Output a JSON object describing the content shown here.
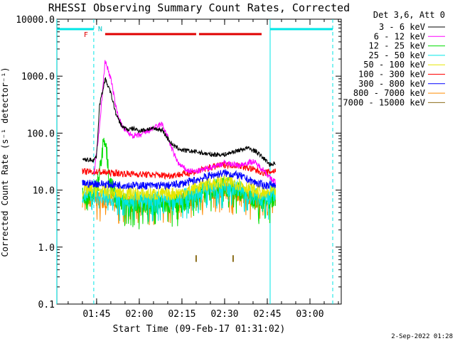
{
  "chart_data": {
    "type": "line",
    "title": "RHESSI Observing Summary Count Rates, Corrected",
    "xlabel": "Start Time (09-Feb-17 01:31:02)",
    "ylabel": "Corrected Count Rate (s⁻¹ detector⁻¹)",
    "footer": "2-Sep-2022 01:28",
    "y_scale": "log",
    "ylim": [
      0.1,
      10000
    ],
    "xlim": [
      "01:31:02",
      "03:11:00"
    ],
    "x_ticks": [
      "01:45",
      "02:00",
      "02:15",
      "02:30",
      "02:45",
      "03:00"
    ],
    "y_ticks": [
      "0.1",
      "1.0",
      "10.0",
      "100.0",
      "1000.0",
      "10000.0"
    ],
    "legend": {
      "position": "top-right",
      "header": "Det 3,6, Att 0",
      "entries": [
        {
          "label": "3 - 6 keV",
          "color": "#000000"
        },
        {
          "label": "6 - 12 keV",
          "color": "#ff00ff"
        },
        {
          "label": "12 - 25 keV",
          "color": "#00dd00"
        },
        {
          "label": "25 - 50 keV",
          "color": "#00e6e6"
        },
        {
          "label": "50 - 100 keV",
          "color": "#e6e600"
        },
        {
          "label": "100 - 300 keV",
          "color": "#ff0000"
        },
        {
          "label": "300 - 800 keV",
          "color": "#0000ff"
        },
        {
          "label": "800 - 7000 keV",
          "color": "#ff8c00"
        },
        {
          "label": "7000 - 15000 keV",
          "color": "#8b6d1a"
        }
      ]
    },
    "flags": {
      "F_label": "F",
      "N_label": "N",
      "flare_bar": [
        [
          "01:48",
          "02:20"
        ],
        [
          "02:21",
          "02:43"
        ]
      ],
      "night_bar": [
        [
          "01:31",
          "01:44"
        ],
        [
          "02:46",
          "03:08"
        ]
      ],
      "cyan_solid_lines": [
        "01:31",
        "02:46"
      ],
      "cyan_dashed_lines": [
        "01:44",
        "03:08"
      ]
    },
    "series": [
      {
        "name": "3 - 6 keV",
        "color": "#000000",
        "x": [
          "01:40",
          "01:44",
          "01:45",
          "01:46",
          "01:48",
          "01:50",
          "01:52",
          "01:54",
          "01:56",
          "01:58",
          "02:00",
          "02:04",
          "02:08",
          "02:10",
          "02:12",
          "02:15",
          "02:20",
          "02:25",
          "02:30",
          "02:35",
          "02:38",
          "02:41",
          "02:44",
          "02:46",
          "02:48"
        ],
        "y": [
          34,
          34,
          40,
          300,
          900,
          500,
          200,
          130,
          115,
          120,
          110,
          120,
          115,
          80,
          60,
          50,
          47,
          42,
          42,
          50,
          55,
          48,
          35,
          28,
          30
        ]
      },
      {
        "name": "6 - 12 keV",
        "color": "#ff00ff",
        "x": [
          "01:44",
          "01:46",
          "01:48",
          "01:50",
          "01:52",
          "01:54",
          "01:56",
          "01:58",
          "02:00",
          "02:04",
          "02:08",
          "02:10",
          "02:12",
          "02:14",
          "02:17",
          "02:20",
          "02:25",
          "02:30",
          "02:35",
          "02:40",
          "02:44",
          "02:46",
          "02:48"
        ],
        "y": [
          18,
          120,
          1900,
          900,
          250,
          130,
          100,
          90,
          90,
          115,
          145,
          85,
          45,
          28,
          22,
          21,
          25,
          30,
          27,
          32,
          22,
          16,
          14
        ]
      },
      {
        "name": "12 - 25 keV",
        "color": "#00dd00",
        "x": [
          "01:40",
          "01:44",
          "01:46",
          "01:47",
          "01:48",
          "01:49",
          "01:50",
          "01:52",
          "01:55",
          "02:00",
          "02:10",
          "02:15",
          "02:20",
          "02:25",
          "02:30",
          "02:35",
          "02:40",
          "02:44",
          "02:48"
        ],
        "y": [
          8,
          8,
          18,
          55,
          65,
          30,
          12,
          7,
          6,
          5.5,
          5.5,
          6,
          8,
          10,
          12,
          10,
          7,
          6,
          8
        ]
      },
      {
        "name": "25 - 50 keV",
        "color": "#00e6e6",
        "x": [
          "01:40",
          "01:45",
          "01:50",
          "02:00",
          "02:10",
          "02:15",
          "02:20",
          "02:25",
          "02:30",
          "02:35",
          "02:40",
          "02:44",
          "02:48"
        ],
        "y": [
          8,
          8,
          7.5,
          7,
          7,
          7.5,
          9,
          11,
          12,
          11,
          8,
          7,
          9
        ]
      },
      {
        "name": "50 - 100 keV",
        "color": "#e6e600",
        "x": [
          "01:40",
          "01:45",
          "01:50",
          "02:00",
          "02:10",
          "02:15",
          "02:20",
          "02:25",
          "02:30",
          "02:35",
          "02:40",
          "02:44",
          "02:48"
        ],
        "y": [
          10,
          10,
          9,
          8.5,
          8.5,
          9,
          11,
          13,
          14,
          13,
          10,
          8.5,
          10
        ]
      },
      {
        "name": "100 - 300 keV",
        "color": "#ff0000",
        "x": [
          "01:40",
          "01:45",
          "01:50",
          "02:00",
          "02:10",
          "02:15",
          "02:20",
          "02:25",
          "02:30",
          "02:35",
          "02:40",
          "02:44",
          "02:48"
        ],
        "y": [
          21,
          21,
          20,
          19,
          18,
          19,
          21,
          25,
          28,
          27,
          23,
          20,
          22
        ]
      },
      {
        "name": "300 - 800 keV",
        "color": "#0000ff",
        "x": [
          "01:40",
          "01:45",
          "01:50",
          "02:00",
          "02:10",
          "02:15",
          "02:20",
          "02:25",
          "02:30",
          "02:35",
          "02:40",
          "02:44",
          "02:48"
        ],
        "y": [
          13,
          13,
          12.5,
          12,
          12,
          13,
          15,
          18,
          20,
          18,
          14,
          12,
          13
        ]
      },
      {
        "name": "800 - 7000 keV",
        "color": "#ff8c00",
        "x": [
          "01:40",
          "01:45",
          "01:50",
          "02:00",
          "02:10",
          "02:15",
          "02:20",
          "02:25",
          "02:30",
          "02:35",
          "02:40",
          "02:44",
          "02:48"
        ],
        "y": [
          7,
          7,
          6.5,
          6,
          6,
          6.5,
          8,
          9.5,
          10,
          9,
          7,
          6.5,
          7.5
        ]
      },
      {
        "name": "7000 - 15000 keV",
        "color": "#8b6d1a",
        "x": [
          "02:20",
          "02:20",
          "02:33",
          "02:33"
        ],
        "y": [
          0.55,
          0.72,
          0.55,
          0.72
        ]
      }
    ]
  }
}
